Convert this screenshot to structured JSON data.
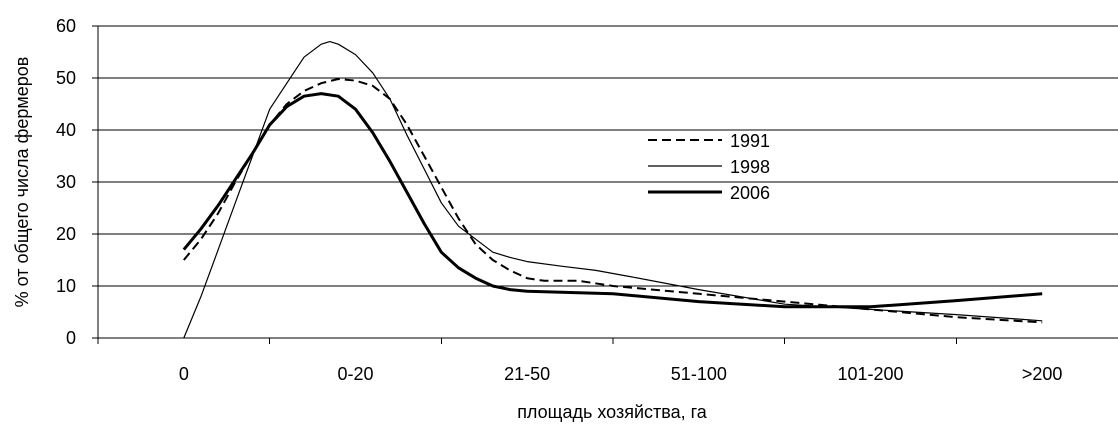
{
  "chart_data": {
    "type": "line",
    "xlabel": "площадь хозяйства, га",
    "ylabel": "% от общего числа фермеров",
    "ylim": [
      0,
      60
    ],
    "yticks": [
      0,
      10,
      20,
      30,
      40,
      50,
      60
    ],
    "grid": "horizontal",
    "legend_position": "right-center",
    "categories": [
      "0",
      "0-20",
      "21-50",
      "51-100",
      "101-200",
      ">200"
    ],
    "series": [
      {
        "name": "1991",
        "style": "dashed",
        "points": [
          [
            0,
            15
          ],
          [
            0.1,
            19
          ],
          [
            0.2,
            24
          ],
          [
            0.3,
            30
          ],
          [
            0.4,
            35.5
          ],
          [
            0.5,
            41
          ],
          [
            0.6,
            45
          ],
          [
            0.7,
            47.5
          ],
          [
            0.8,
            49
          ],
          [
            0.9,
            49.8
          ],
          [
            1,
            49.5
          ],
          [
            1.1,
            48.5
          ],
          [
            1.2,
            46
          ],
          [
            1.3,
            41
          ],
          [
            1.4,
            35
          ],
          [
            1.5,
            29
          ],
          [
            1.6,
            23
          ],
          [
            1.7,
            18
          ],
          [
            1.8,
            15
          ],
          [
            1.9,
            13
          ],
          [
            2,
            11.5
          ],
          [
            2.1,
            11
          ],
          [
            2.3,
            11
          ],
          [
            2.5,
            10
          ],
          [
            3,
            8.5
          ],
          [
            3.5,
            7
          ],
          [
            4,
            5.5
          ],
          [
            4.5,
            4
          ],
          [
            5,
            3
          ]
        ]
      },
      {
        "name": "1998",
        "style": "thin",
        "points": [
          [
            0,
            0
          ],
          [
            0.1,
            8
          ],
          [
            0.2,
            17
          ],
          [
            0.3,
            26
          ],
          [
            0.4,
            35
          ],
          [
            0.5,
            44
          ],
          [
            0.6,
            49
          ],
          [
            0.7,
            54
          ],
          [
            0.8,
            56.5
          ],
          [
            0.85,
            57
          ],
          [
            0.9,
            56.5
          ],
          [
            1,
            54.5
          ],
          [
            1.1,
            51
          ],
          [
            1.2,
            46
          ],
          [
            1.3,
            39
          ],
          [
            1.4,
            32.5
          ],
          [
            1.5,
            26
          ],
          [
            1.6,
            21.5
          ],
          [
            1.7,
            19
          ],
          [
            1.8,
            16.5
          ],
          [
            1.9,
            15.5
          ],
          [
            2,
            14.7
          ],
          [
            2.2,
            13.8
          ],
          [
            2.4,
            13
          ],
          [
            2.6,
            11.8
          ],
          [
            3,
            9.3
          ],
          [
            3.5,
            6.5
          ],
          [
            4,
            5.5
          ],
          [
            4.5,
            4.5
          ],
          [
            5,
            3.3
          ]
        ]
      },
      {
        "name": "2006",
        "style": "thick",
        "points": [
          [
            0,
            17
          ],
          [
            0.1,
            21
          ],
          [
            0.2,
            25.5
          ],
          [
            0.3,
            30.5
          ],
          [
            0.4,
            35.5
          ],
          [
            0.5,
            41
          ],
          [
            0.6,
            44.5
          ],
          [
            0.7,
            46.5
          ],
          [
            0.8,
            47
          ],
          [
            0.9,
            46.5
          ],
          [
            1,
            44
          ],
          [
            1.1,
            39.5
          ],
          [
            1.2,
            34
          ],
          [
            1.3,
            28
          ],
          [
            1.4,
            22
          ],
          [
            1.5,
            16.5
          ],
          [
            1.6,
            13.5
          ],
          [
            1.7,
            11.5
          ],
          [
            1.8,
            10
          ],
          [
            1.9,
            9.3
          ],
          [
            2,
            9
          ],
          [
            2.5,
            8.5
          ],
          [
            3,
            7
          ],
          [
            3.5,
            6
          ],
          [
            4,
            6
          ],
          [
            4.5,
            7.2
          ],
          [
            5,
            8.5
          ]
        ]
      }
    ]
  }
}
